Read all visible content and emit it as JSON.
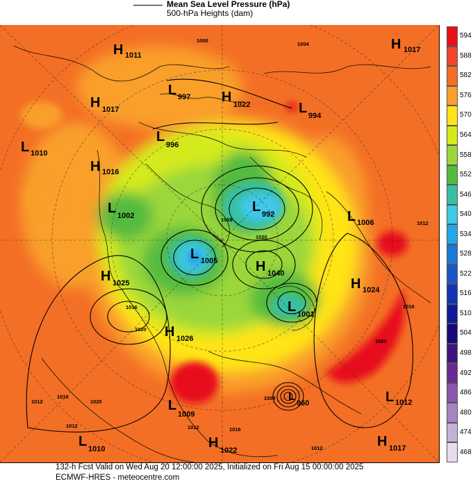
{
  "legend": {
    "mslp_label": "Mean Sea Level Pressure (hPa)",
    "heights_label": "500-hPa Heights (dam)"
  },
  "colorbar": {
    "levels": [
      "594",
      "588",
      "582",
      "576",
      "570",
      "564",
      "558",
      "552",
      "546",
      "540",
      "534",
      "528",
      "522",
      "516",
      "510",
      "504",
      "498",
      "492",
      "486",
      "480",
      "474",
      "468"
    ],
    "colors": [
      "#e8111b",
      "#f2442b",
      "#f36f25",
      "#f99f2c",
      "#ffe417",
      "#d4ea1a",
      "#9bd73a",
      "#55bb3f",
      "#37bfa3",
      "#3fc8e8",
      "#23a7e6",
      "#1a7ad6",
      "#1b55c8",
      "#1234b5",
      "#0d1b9a",
      "#170a7a",
      "#3e1580",
      "#6a2a96",
      "#8c56ae",
      "#a883c2",
      "#c5b0d8",
      "#e6dcef"
    ]
  },
  "pressure_centers": [
    {
      "type": "H",
      "value": "1011"
    },
    {
      "type": "H",
      "value": "1017"
    },
    {
      "type": "L",
      "value": "997"
    },
    {
      "type": "H",
      "value": "1022"
    },
    {
      "type": "L",
      "value": "994"
    },
    {
      "type": "H",
      "value": "1017"
    },
    {
      "type": "L",
      "value": "1010"
    },
    {
      "type": "L",
      "value": "996"
    },
    {
      "type": "H",
      "value": "1016"
    },
    {
      "type": "L",
      "value": "1002"
    },
    {
      "type": "L",
      "value": "992"
    },
    {
      "type": "L",
      "value": "1006"
    },
    {
      "type": "L",
      "value": "1005"
    },
    {
      "type": "H",
      "value": "1040"
    },
    {
      "type": "H",
      "value": "1025"
    },
    {
      "type": "H",
      "value": "1024"
    },
    {
      "type": "L",
      "value": "1001"
    },
    {
      "type": "H",
      "value": "1026"
    },
    {
      "type": "L",
      "value": "960"
    },
    {
      "type": "L",
      "value": "1009"
    },
    {
      "type": "L",
      "value": "1012"
    },
    {
      "type": "L",
      "value": "1010"
    },
    {
      "type": "H",
      "value": "1022"
    },
    {
      "type": "H",
      "value": "1017"
    }
  ],
  "isobar_labels": [
    "1000",
    "1004",
    "1008",
    "1020",
    "1016",
    "1020",
    "1012",
    "1016",
    "1020",
    "1012",
    "1016",
    "1020",
    "1008",
    "1012",
    "1016",
    "1012",
    "1012"
  ],
  "footer": {
    "line1": "132-h Fcst Valid on Wed Aug 20 12:00:00 2025, Initialized on Fri Aug 15 00:00:00 2025",
    "line2": "ECMWF-HRES  - meteocentre.com"
  }
}
